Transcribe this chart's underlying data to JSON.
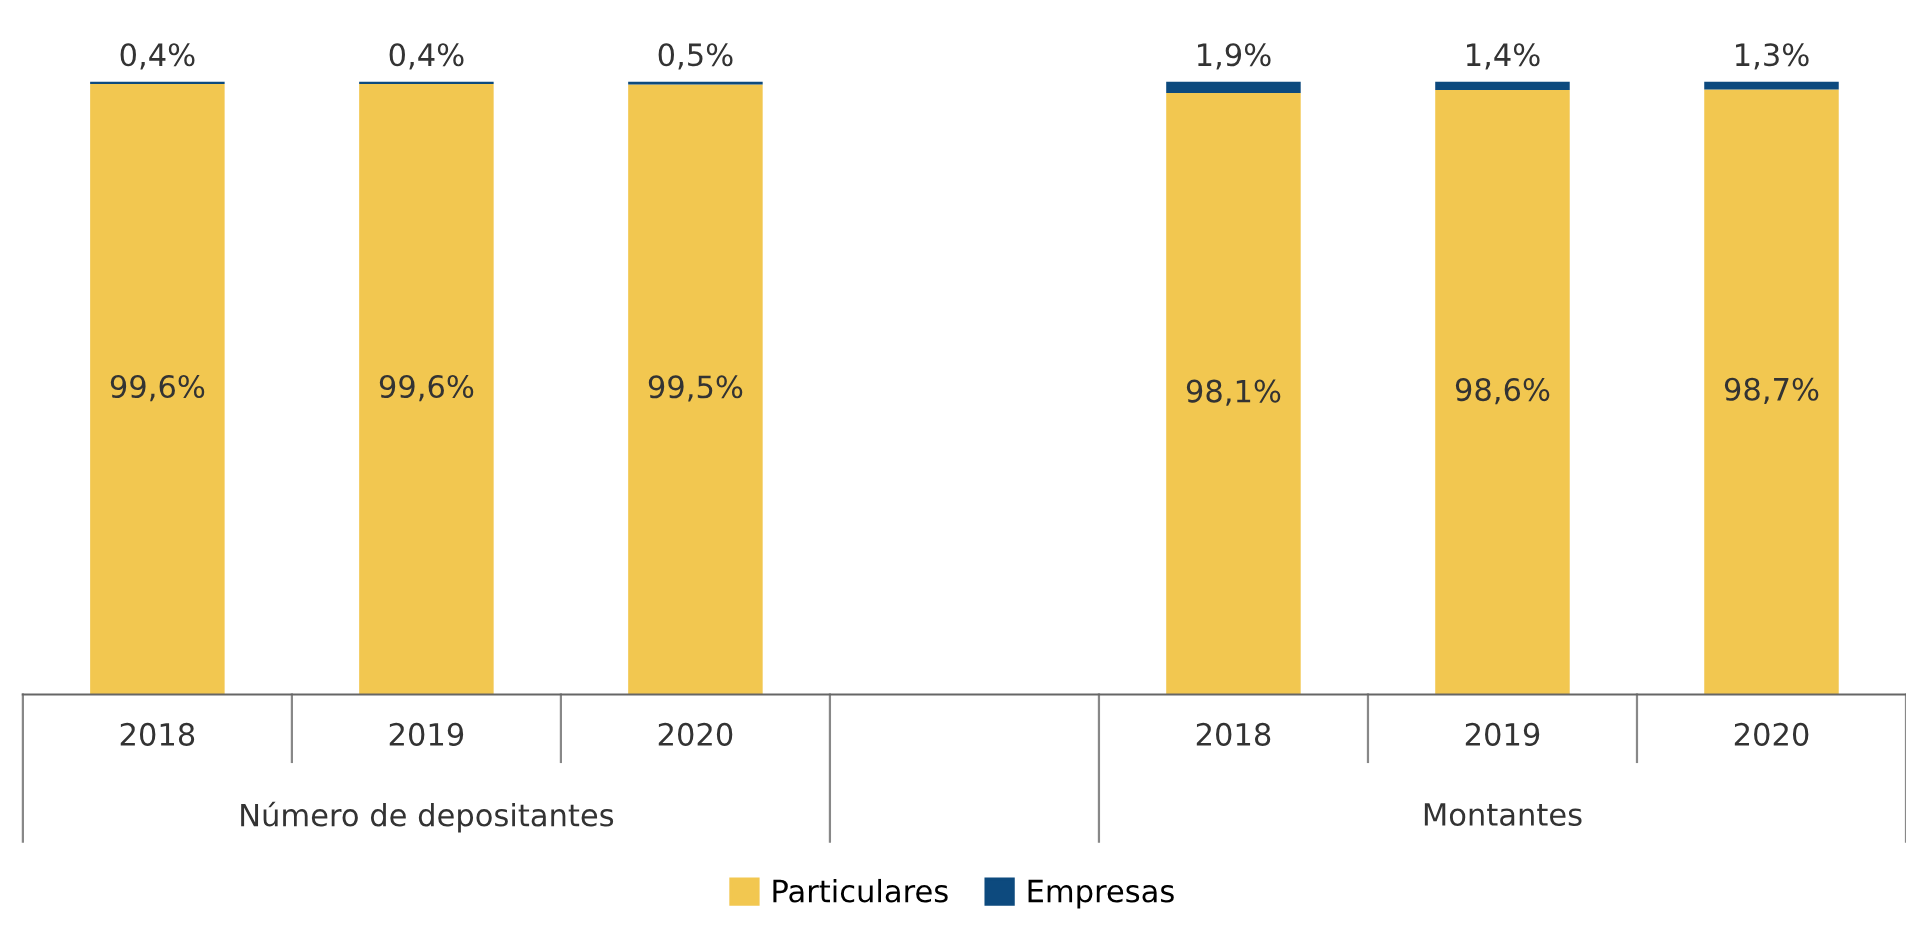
{
  "chart_data": {
    "type": "bar",
    "stacked": true,
    "categories": [
      "2018",
      "2019",
      "2020",
      null,
      "2018",
      "2019",
      "2020"
    ],
    "series": [
      {
        "name": "Particulares",
        "color": "#f2c750",
        "values": [
          99.6,
          99.6,
          99.5,
          null,
          98.1,
          98.6,
          98.7
        ],
        "value_labels": [
          "99,6%",
          "99,6%",
          "99,5%",
          null,
          "98,1%",
          "98,6%",
          "98,7%"
        ]
      },
      {
        "name": "Empresas",
        "color": "#0d4a7e",
        "values": [
          0.4,
          0.4,
          0.5,
          null,
          1.9,
          1.4,
          1.3
        ],
        "value_labels": [
          "0,4%",
          "0,4%",
          "0,5%",
          null,
          "1,9%",
          "1,4%",
          "1,3%"
        ]
      }
    ],
    "ylim": [
      0,
      100
    ],
    "tick_labels": "x",
    "legend": "bottom",
    "grid": false,
    "annotations": [
      "Número de depositantes",
      "Montantes"
    ]
  }
}
